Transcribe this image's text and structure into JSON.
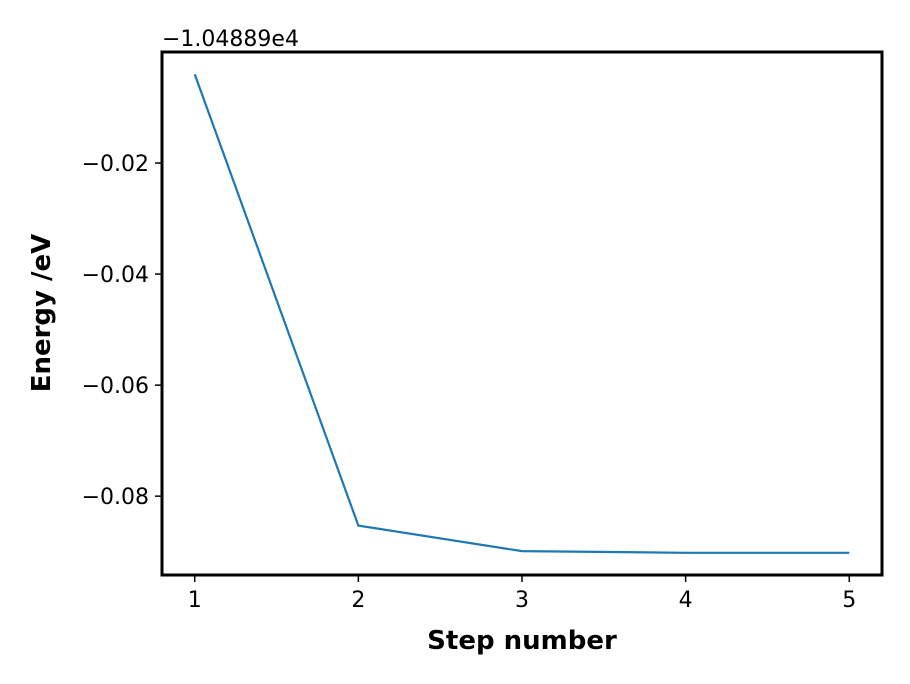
{
  "chart_data": {
    "type": "line",
    "title": "",
    "xlabel": "Step number",
    "ylabel": "Energy /eV",
    "y_offset_label": "−1.04889e4",
    "x": [
      1,
      2,
      3,
      4,
      5
    ],
    "series": [
      {
        "color": "#1f77b4",
        "values": [
          -0.004,
          -0.0853,
          -0.0899,
          -0.0902,
          -0.0902
        ]
      }
    ],
    "xlim": [
      0.8,
      5.2
    ],
    "ylim": [
      -0.0942,
      0.0
    ]
  },
  "x_ticks": [
    {
      "value": 1,
      "label": "1"
    },
    {
      "value": 2,
      "label": "2"
    },
    {
      "value": 3,
      "label": "3"
    },
    {
      "value": 4,
      "label": "4"
    },
    {
      "value": 5,
      "label": "5"
    }
  ],
  "y_ticks": [
    {
      "value": -0.02,
      "label": "−0.02"
    },
    {
      "value": -0.04,
      "label": "−0.04"
    },
    {
      "value": -0.06,
      "label": "−0.06"
    },
    {
      "value": -0.08,
      "label": "−0.08"
    }
  ]
}
